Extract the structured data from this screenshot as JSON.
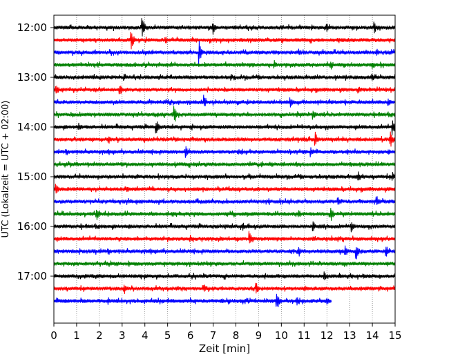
{
  "chart_data": {
    "type": "line",
    "xlabel": "Zeit  [min]",
    "ylabel": "UTC (Lokalzeit = UTC + 02:00)",
    "xlim": [
      0,
      15
    ],
    "x_ticks": [
      "0",
      "1",
      "2",
      "3",
      "4",
      "5",
      "6",
      "7",
      "8",
      "9",
      "10",
      "11",
      "12",
      "13",
      "14",
      "15"
    ],
    "y_ticks": [
      "12:00",
      "13:00",
      "14:00",
      "15:00",
      "16:00",
      "17:00"
    ],
    "vertical_grid": true,
    "colors": [
      "#000000",
      "#ff0000",
      "#0000ff",
      "#008000"
    ],
    "traces": [
      {
        "start": "12:00",
        "end_min": 15,
        "color": "#000000",
        "events": [
          [
            3.9,
            14
          ],
          [
            7.0,
            11
          ],
          [
            12.0,
            7
          ],
          [
            14.1,
            9
          ]
        ]
      },
      {
        "start": "12:15",
        "end_min": 15,
        "color": "#ff0000",
        "events": [
          [
            3.4,
            17
          ],
          [
            4.9,
            5
          ],
          [
            7.9,
            5
          ],
          [
            10.7,
            5
          ]
        ]
      },
      {
        "start": "12:30",
        "end_min": 15,
        "color": "#0000ff",
        "events": [
          [
            6.4,
            19
          ],
          [
            10.8,
            6
          ],
          [
            14.2,
            7
          ]
        ]
      },
      {
        "start": "12:45",
        "end_min": 15,
        "color": "#008000",
        "events": [
          [
            9.7,
            7
          ],
          [
            12.2,
            8
          ],
          [
            14.0,
            6
          ]
        ]
      },
      {
        "start": "13:00",
        "end_min": 15,
        "color": "#000000",
        "events": [
          [
            3.1,
            7
          ],
          [
            7.8,
            6
          ],
          [
            12.4,
            5
          ],
          [
            14.0,
            6
          ]
        ]
      },
      {
        "start": "13:15",
        "end_min": 15,
        "color": "#ff0000",
        "events": [
          [
            0.1,
            11
          ],
          [
            2.9,
            11
          ],
          [
            7.5,
            5
          ],
          [
            13.4,
            6
          ]
        ]
      },
      {
        "start": "13:30",
        "end_min": 15,
        "color": "#0000ff",
        "events": [
          [
            6.6,
            13
          ],
          [
            10.4,
            9
          ],
          [
            14.7,
            8
          ]
        ]
      },
      {
        "start": "13:45",
        "end_min": 15,
        "color": "#008000",
        "events": [
          [
            5.3,
            16
          ],
          [
            11.4,
            9
          ]
        ]
      },
      {
        "start": "14:00",
        "end_min": 15,
        "color": "#000000",
        "events": [
          [
            1.1,
            7
          ],
          [
            4.5,
            12
          ],
          [
            14.9,
            13
          ]
        ]
      },
      {
        "start": "14:15",
        "end_min": 15,
        "color": "#ff0000",
        "events": [
          [
            2.4,
            8
          ],
          [
            11.5,
            13
          ],
          [
            14.8,
            13
          ]
        ]
      },
      {
        "start": "14:30",
        "end_min": 15,
        "color": "#0000ff",
        "events": [
          [
            5.8,
            9
          ],
          [
            8.1,
            6
          ],
          [
            11.3,
            8
          ],
          [
            14.7,
            6
          ]
        ]
      },
      {
        "start": "14:45",
        "end_min": 15,
        "color": "#008000",
        "events": [
          [
            3.0,
            4
          ],
          [
            9.5,
            4
          ]
        ]
      },
      {
        "start": "15:00",
        "end_min": 15,
        "color": "#000000",
        "events": [
          [
            13.4,
            8
          ],
          [
            14.9,
            7
          ]
        ]
      },
      {
        "start": "15:15",
        "end_min": 15,
        "color": "#ff0000",
        "events": [
          [
            0.1,
            10
          ],
          [
            3.2,
            7
          ],
          [
            9.0,
            5
          ]
        ]
      },
      {
        "start": "15:30",
        "end_min": 15,
        "color": "#0000ff",
        "events": [
          [
            12.5,
            8
          ],
          [
            14.2,
            10
          ]
        ]
      },
      {
        "start": "15:45",
        "end_min": 15,
        "color": "#008000",
        "events": [
          [
            1.9,
            10
          ],
          [
            10.8,
            6
          ],
          [
            12.2,
            12
          ]
        ]
      },
      {
        "start": "16:00",
        "end_min": 15,
        "color": "#000000",
        "events": [
          [
            8.3,
            7
          ],
          [
            11.4,
            9
          ],
          [
            13.1,
            10
          ]
        ]
      },
      {
        "start": "16:15",
        "end_min": 15,
        "color": "#ff0000",
        "events": [
          [
            6.0,
            6
          ],
          [
            8.6,
            14
          ],
          [
            11.4,
            5
          ]
        ]
      },
      {
        "start": "16:30",
        "end_min": 15,
        "color": "#0000ff",
        "events": [
          [
            10.8,
            8
          ],
          [
            12.8,
            10
          ],
          [
            13.3,
            13
          ],
          [
            14.6,
            11
          ]
        ]
      },
      {
        "start": "16:45",
        "end_min": 15,
        "color": "#008000",
        "events": [
          [
            3.3,
            5
          ],
          [
            8.6,
            4
          ]
        ]
      },
      {
        "start": "17:00",
        "end_min": 15,
        "color": "#000000",
        "events": [
          [
            11.9,
            7
          ],
          [
            13.6,
            7
          ]
        ]
      },
      {
        "start": "17:15",
        "end_min": 15,
        "color": "#ff0000",
        "events": [
          [
            3.1,
            9
          ],
          [
            6.6,
            8
          ],
          [
            8.9,
            10
          ]
        ]
      },
      {
        "start": "17:30",
        "end_min": 12.2,
        "color": "#0000ff",
        "events": [
          [
            2.4,
            6
          ],
          [
            7.4,
            5
          ],
          [
            9.8,
            17
          ],
          [
            10.7,
            8
          ],
          [
            12.0,
            7
          ]
        ]
      }
    ]
  }
}
